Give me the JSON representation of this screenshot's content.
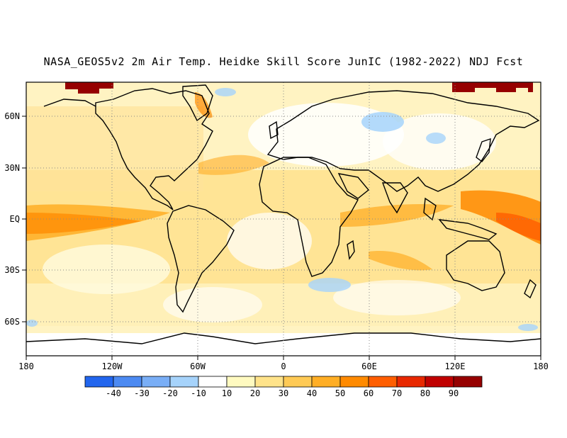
{
  "title": "NASA_GEOS5v2 2m Air Temp. Heidke Skill Score JunIC (1982-2022) NDJ Fcst",
  "map": {
    "lon_ticks": [
      "180",
      "120W",
      "60W",
      "0",
      "60E",
      "120E",
      "180"
    ],
    "lat_ticks": [
      "60N",
      "30N",
      "EQ",
      "30S",
      "60S"
    ],
    "lon_range": [
      -180,
      180
    ],
    "lat_range": [
      -80,
      80
    ],
    "grid": "dotted"
  },
  "colorbar": {
    "labels": [
      "-40",
      "-30",
      "-20",
      "-10",
      "10",
      "20",
      "30",
      "40",
      "50",
      "60",
      "70",
      "80",
      "90"
    ],
    "colors": [
      "#2266ee",
      "#4c8af2",
      "#79aef6",
      "#a6d3fb",
      "#ffffff",
      "#fffac0",
      "#ffe38a",
      "#ffca55",
      "#ffae25",
      "#ff8a00",
      "#ff5e00",
      "#e82800",
      "#c00000",
      "#960000"
    ]
  }
}
